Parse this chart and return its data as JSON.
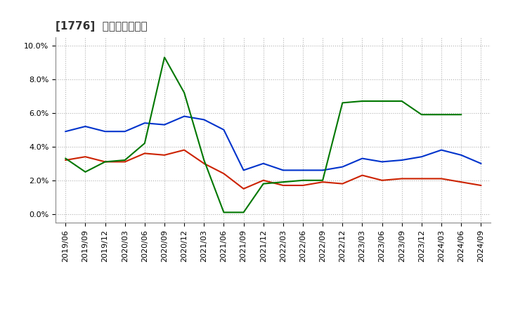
{
  "title": "[1776]  マージンの推移",
  "ylim": [
    -0.005,
    0.105
  ],
  "yticks": [
    0.0,
    0.02,
    0.04,
    0.06,
    0.08,
    0.1
  ],
  "dates": [
    "2019/06",
    "2019/09",
    "2019/12",
    "2020/03",
    "2020/06",
    "2020/09",
    "2020/12",
    "2021/03",
    "2021/06",
    "2021/09",
    "2021/12",
    "2022/03",
    "2022/06",
    "2022/09",
    "2022/12",
    "2023/03",
    "2023/06",
    "2023/09",
    "2023/12",
    "2024/03",
    "2024/06",
    "2024/09"
  ],
  "keijo_rieki": [
    0.049,
    0.052,
    0.049,
    0.049,
    0.054,
    0.053,
    0.058,
    0.056,
    0.05,
    0.026,
    0.03,
    0.026,
    0.026,
    0.026,
    0.028,
    0.033,
    0.031,
    0.032,
    0.034,
    0.038,
    0.035,
    0.03
  ],
  "touki_junrieki": [
    0.032,
    0.034,
    0.031,
    0.031,
    0.036,
    0.035,
    0.038,
    0.03,
    0.024,
    0.015,
    0.02,
    0.017,
    0.017,
    0.019,
    0.018,
    0.023,
    0.02,
    0.021,
    0.021,
    0.021,
    0.019,
    0.017
  ],
  "eigyo_cf": [
    0.033,
    0.025,
    0.031,
    0.032,
    0.042,
    0.093,
    0.072,
    0.032,
    0.001,
    0.001,
    0.018,
    0.019,
    0.02,
    0.02,
    0.066,
    0.067,
    0.067,
    0.067,
    0.059,
    0.059,
    0.059,
    null
  ],
  "keijo_color": "#0033cc",
  "touki_color": "#cc2200",
  "eigyo_color": "#007700",
  "background_color": "#ffffff",
  "grid_color": "#aaaaaa",
  "title_fontsize": 11,
  "tick_fontsize": 8,
  "legend_fontsize": 9
}
